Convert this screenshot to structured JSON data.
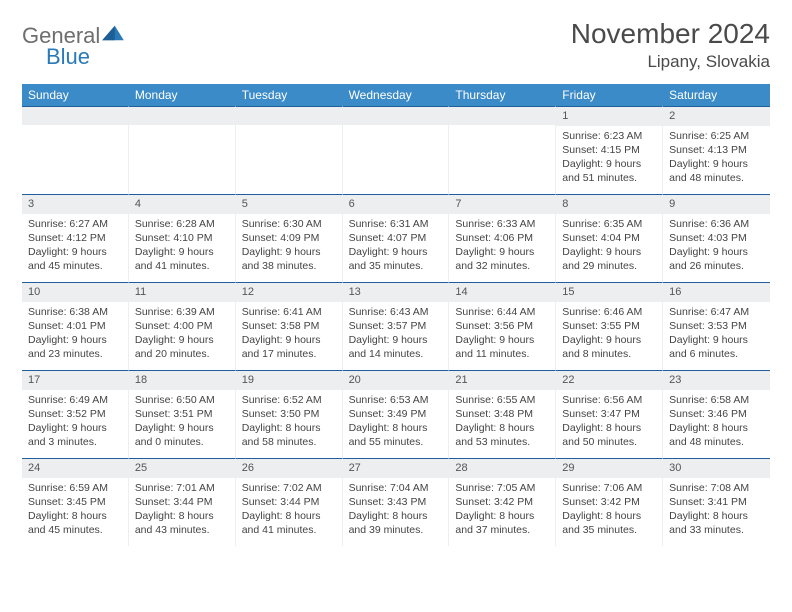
{
  "logo": {
    "word1": "General",
    "word2": "Blue",
    "mark_color": "#2a7ab8"
  },
  "title": "November 2024",
  "location": "Lipany, Slovakia",
  "header_bg": "#3b8bc9",
  "weekdays": [
    "Sunday",
    "Monday",
    "Tuesday",
    "Wednesday",
    "Thursday",
    "Friday",
    "Saturday"
  ],
  "leading_blanks": 5,
  "days": [
    {
      "n": 1,
      "sr": "6:23 AM",
      "ss": "4:15 PM",
      "dl": "9 hours and 51 minutes."
    },
    {
      "n": 2,
      "sr": "6:25 AM",
      "ss": "4:13 PM",
      "dl": "9 hours and 48 minutes."
    },
    {
      "n": 3,
      "sr": "6:27 AM",
      "ss": "4:12 PM",
      "dl": "9 hours and 45 minutes."
    },
    {
      "n": 4,
      "sr": "6:28 AM",
      "ss": "4:10 PM",
      "dl": "9 hours and 41 minutes."
    },
    {
      "n": 5,
      "sr": "6:30 AM",
      "ss": "4:09 PM",
      "dl": "9 hours and 38 minutes."
    },
    {
      "n": 6,
      "sr": "6:31 AM",
      "ss": "4:07 PM",
      "dl": "9 hours and 35 minutes."
    },
    {
      "n": 7,
      "sr": "6:33 AM",
      "ss": "4:06 PM",
      "dl": "9 hours and 32 minutes."
    },
    {
      "n": 8,
      "sr": "6:35 AM",
      "ss": "4:04 PM",
      "dl": "9 hours and 29 minutes."
    },
    {
      "n": 9,
      "sr": "6:36 AM",
      "ss": "4:03 PM",
      "dl": "9 hours and 26 minutes."
    },
    {
      "n": 10,
      "sr": "6:38 AM",
      "ss": "4:01 PM",
      "dl": "9 hours and 23 minutes."
    },
    {
      "n": 11,
      "sr": "6:39 AM",
      "ss": "4:00 PM",
      "dl": "9 hours and 20 minutes."
    },
    {
      "n": 12,
      "sr": "6:41 AM",
      "ss": "3:58 PM",
      "dl": "9 hours and 17 minutes."
    },
    {
      "n": 13,
      "sr": "6:43 AM",
      "ss": "3:57 PM",
      "dl": "9 hours and 14 minutes."
    },
    {
      "n": 14,
      "sr": "6:44 AM",
      "ss": "3:56 PM",
      "dl": "9 hours and 11 minutes."
    },
    {
      "n": 15,
      "sr": "6:46 AM",
      "ss": "3:55 PM",
      "dl": "9 hours and 8 minutes."
    },
    {
      "n": 16,
      "sr": "6:47 AM",
      "ss": "3:53 PM",
      "dl": "9 hours and 6 minutes."
    },
    {
      "n": 17,
      "sr": "6:49 AM",
      "ss": "3:52 PM",
      "dl": "9 hours and 3 minutes."
    },
    {
      "n": 18,
      "sr": "6:50 AM",
      "ss": "3:51 PM",
      "dl": "9 hours and 0 minutes."
    },
    {
      "n": 19,
      "sr": "6:52 AM",
      "ss": "3:50 PM",
      "dl": "8 hours and 58 minutes."
    },
    {
      "n": 20,
      "sr": "6:53 AM",
      "ss": "3:49 PM",
      "dl": "8 hours and 55 minutes."
    },
    {
      "n": 21,
      "sr": "6:55 AM",
      "ss": "3:48 PM",
      "dl": "8 hours and 53 minutes."
    },
    {
      "n": 22,
      "sr": "6:56 AM",
      "ss": "3:47 PM",
      "dl": "8 hours and 50 minutes."
    },
    {
      "n": 23,
      "sr": "6:58 AM",
      "ss": "3:46 PM",
      "dl": "8 hours and 48 minutes."
    },
    {
      "n": 24,
      "sr": "6:59 AM",
      "ss": "3:45 PM",
      "dl": "8 hours and 45 minutes."
    },
    {
      "n": 25,
      "sr": "7:01 AM",
      "ss": "3:44 PM",
      "dl": "8 hours and 43 minutes."
    },
    {
      "n": 26,
      "sr": "7:02 AM",
      "ss": "3:44 PM",
      "dl": "8 hours and 41 minutes."
    },
    {
      "n": 27,
      "sr": "7:04 AM",
      "ss": "3:43 PM",
      "dl": "8 hours and 39 minutes."
    },
    {
      "n": 28,
      "sr": "7:05 AM",
      "ss": "3:42 PM",
      "dl": "8 hours and 37 minutes."
    },
    {
      "n": 29,
      "sr": "7:06 AM",
      "ss": "3:42 PM",
      "dl": "8 hours and 35 minutes."
    },
    {
      "n": 30,
      "sr": "7:08 AM",
      "ss": "3:41 PM",
      "dl": "8 hours and 33 minutes."
    }
  ],
  "labels": {
    "sunrise": "Sunrise:",
    "sunset": "Sunset:",
    "daylight": "Daylight:"
  }
}
